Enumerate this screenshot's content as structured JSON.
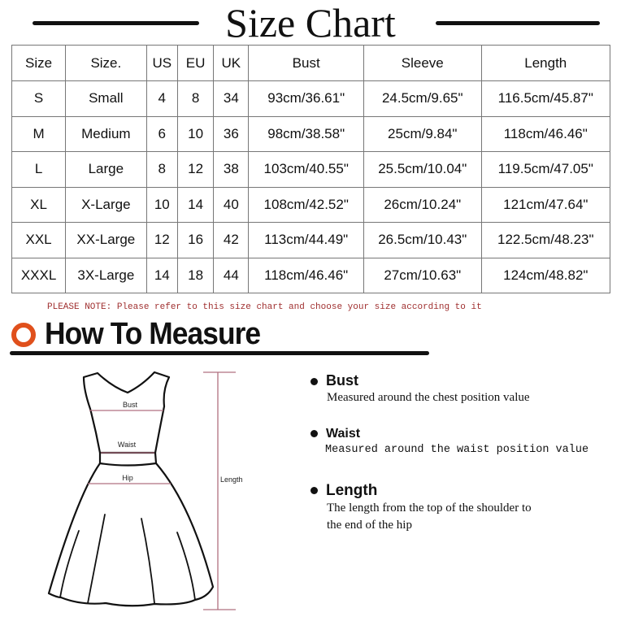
{
  "title": "Size Chart",
  "table": {
    "headers": [
      "Size",
      "Size.",
      "US",
      "EU",
      "UK",
      "Bust",
      "Sleeve",
      "Length"
    ],
    "rows": [
      [
        "S",
        "Small",
        "4",
        "8",
        "34",
        "93cm/36.61\"",
        "24.5cm/9.65\"",
        "116.5cm/45.87\""
      ],
      [
        "M",
        "Medium",
        "6",
        "10",
        "36",
        "98cm/38.58\"",
        "25cm/9.84\"",
        "118cm/46.46\""
      ],
      [
        "L",
        "Large",
        "8",
        "12",
        "38",
        "103cm/40.55\"",
        "25.5cm/10.04\"",
        "119.5cm/47.05\""
      ],
      [
        "XL",
        "X-Large",
        "10",
        "14",
        "40",
        "108cm/42.52\"",
        "26cm/10.24\"",
        "121cm/47.64\""
      ],
      [
        "XXL",
        "XX-Large",
        "12",
        "16",
        "42",
        "113cm/44.49\"",
        "26.5cm/10.43\"",
        "122.5cm/48.23\""
      ],
      [
        "XXXL",
        "3X-Large",
        "14",
        "18",
        "44",
        "118cm/46.46\"",
        "27cm/10.63\"",
        "124cm/48.82\""
      ]
    ]
  },
  "note": "PLEASE NOTE: Please refer to this size chart and choose your size according to it",
  "how_to": {
    "title": "How To Measure",
    "items": [
      {
        "label": "Bust",
        "desc": "Measured around the chest position value"
      },
      {
        "label": "Waist",
        "desc": "Measured around the waist position value"
      },
      {
        "label": "Length",
        "desc_lines": [
          "The length from the top of the shoulder to",
          "the end of the hip"
        ]
      }
    ]
  },
  "diagram": {
    "bust": "Bust",
    "waist": "Waist",
    "hip": "Hip",
    "length": "Length"
  },
  "colors": {
    "accent": "#e0501c",
    "note": "#a03030",
    "measure_line": "#b07080"
  }
}
